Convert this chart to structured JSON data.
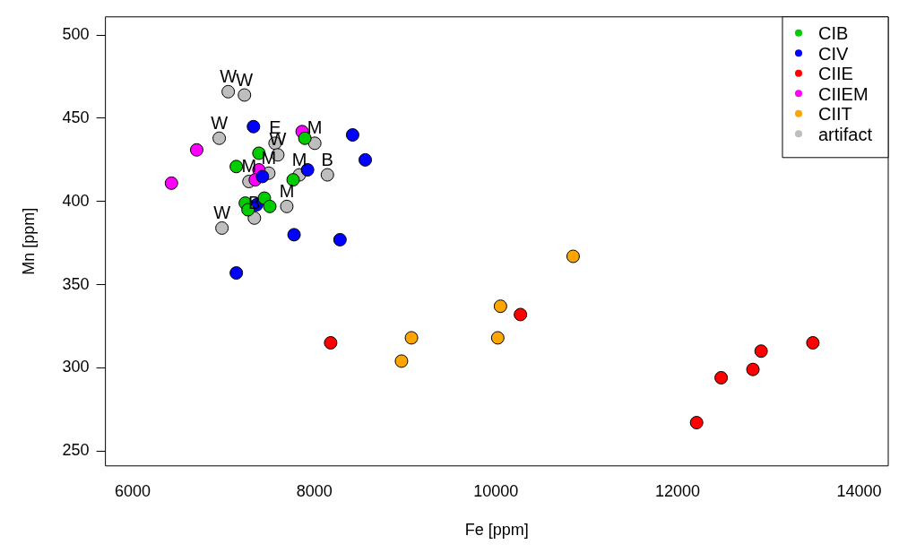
{
  "chart_data": {
    "type": "scatter",
    "xlabel": "Fe [ppm]",
    "ylabel": "Mn [ppm]",
    "xlim": [
      5700,
      14320
    ],
    "xticks": [
      6000,
      8000,
      10000,
      12000,
      14000
    ],
    "ylim": [
      241,
      511
    ],
    "yticks": [
      250,
      300,
      350,
      400,
      450,
      500
    ],
    "grid": false,
    "legend": "top right",
    "marker": "circle",
    "series": [
      {
        "name": "CIB",
        "color": "#00cc00",
        "x": [
          7896,
          7390,
          7141,
          7767,
          7240,
          7270,
          7450,
          7510
        ],
        "values": [
          438,
          429,
          421,
          413,
          399,
          395,
          402,
          397
        ]
      },
      {
        "name": "CIV",
        "color": "#0000ff",
        "x": [
          7330,
          8422,
          8561,
          7926,
          7429,
          7365,
          7777,
          8283,
          7141
        ],
        "values": [
          445,
          440,
          425,
          419,
          415,
          398,
          380,
          377,
          357
        ]
      },
      {
        "name": "CIIE",
        "color": "#ff0000",
        "x": [
          8180,
          10270,
          12210,
          12480,
          12830,
          12920,
          13490
        ],
        "values": [
          315,
          332,
          267,
          294,
          299,
          310,
          315
        ]
      },
      {
        "name": "CIIEM",
        "color": "#ff00ff",
        "x": [
          6427,
          6705,
          7866,
          7390,
          7350
        ],
        "values": [
          411,
          431,
          442,
          419,
          413
        ]
      },
      {
        "name": "CIIT",
        "color": "#ffa500",
        "x": [
          8960,
          9070,
          10020,
          10050,
          10850
        ],
        "values": [
          304,
          318,
          318,
          337,
          367
        ]
      },
      {
        "name": "artifact",
        "color": "#bebebe",
        "x": [
          7052,
          7231,
          6953,
          7568,
          7598,
          8005,
          8144,
          7836,
          7499,
          7280,
          7697,
          7340,
          6983
        ],
        "values": [
          466,
          464,
          438,
          435,
          428,
          435,
          416,
          416,
          417,
          412,
          397,
          390,
          384
        ]
      }
    ],
    "annotations": [
      {
        "text": "W",
        "x": 7052,
        "y": 466
      },
      {
        "text": "W",
        "x": 7231,
        "y": 464
      },
      {
        "text": "W",
        "x": 6953,
        "y": 438
      },
      {
        "text": "E",
        "x": 7568,
        "y": 435
      },
      {
        "text": "W",
        "x": 7598,
        "y": 428
      },
      {
        "text": "M",
        "x": 8005,
        "y": 435
      },
      {
        "text": "B",
        "x": 8144,
        "y": 416
      },
      {
        "text": "M",
        "x": 7836,
        "y": 416
      },
      {
        "text": "M",
        "x": 7499,
        "y": 417
      },
      {
        "text": "M",
        "x": 7280,
        "y": 412
      },
      {
        "text": "M",
        "x": 7697,
        "y": 397
      },
      {
        "text": "B",
        "x": 7340,
        "y": 390
      },
      {
        "text": "W",
        "x": 6983,
        "y": 384
      }
    ]
  }
}
